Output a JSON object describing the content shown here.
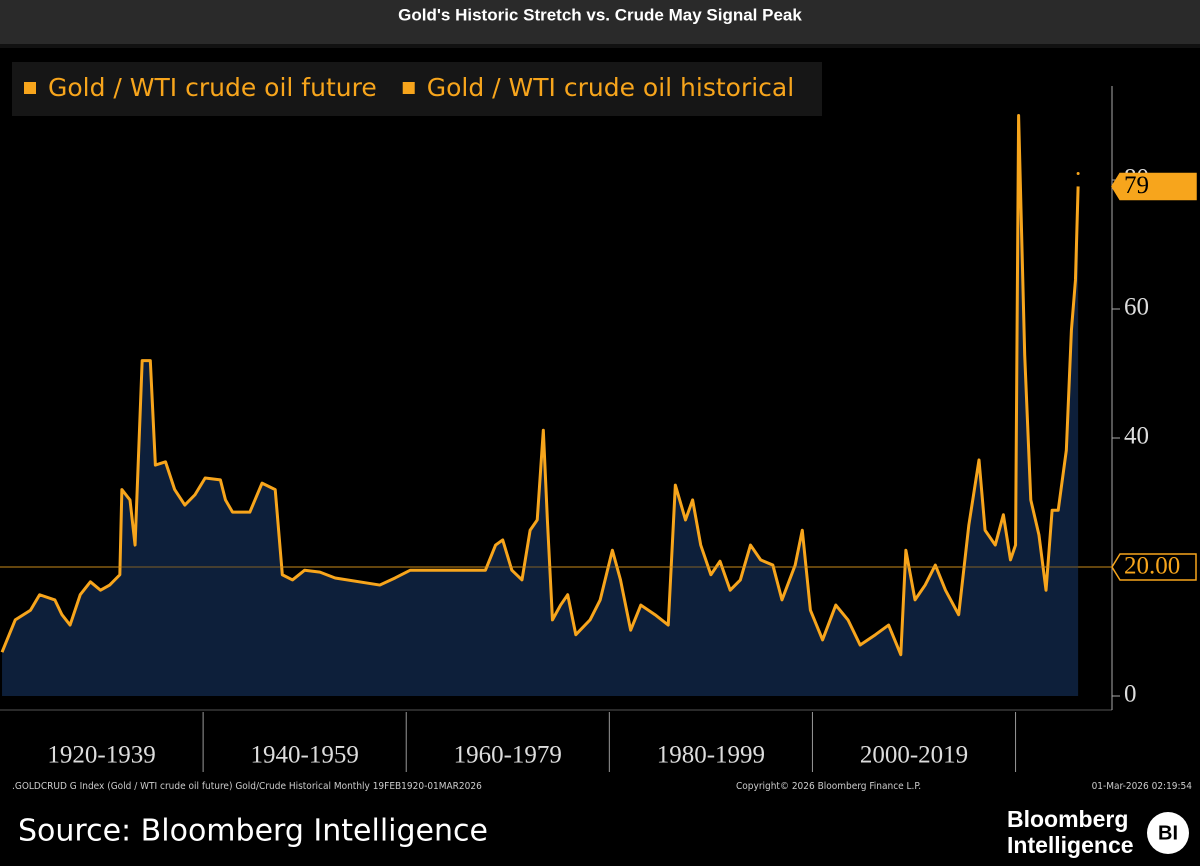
{
  "chart_data": {
    "type": "line",
    "title": "Gold's Historic Stretch vs. Crude May Signal Peak",
    "legend": "top-left",
    "series": [
      {
        "name": "Gold / WTI crude oil future",
        "color": "#f7a51c",
        "x": [
          2026.16
        ],
        "values": [
          81
        ]
      },
      {
        "name": "Gold / WTI crude oil historical",
        "color": "#f7a51c",
        "area_color": "#0d1f3a",
        "x": [
          1920.2,
          1921.5,
          1923.0,
          1923.9,
          1925.4,
          1926.1,
          1926.9,
          1927.9,
          1928.9,
          1929.9,
          1930.8,
          1931.8,
          1932.0,
          1932.8,
          1933.3,
          1934.0,
          1934.8,
          1935.3,
          1936.3,
          1937.2,
          1938.2,
          1939.2,
          1940.2,
          1941.7,
          1942.2,
          1942.9,
          1944.6,
          1945.8,
          1947.1,
          1947.8,
          1948.8,
          1950.0,
          1951.5,
          1953.0,
          1957.4,
          1958.9,
          1960.4,
          1964.3,
          1967.8,
          1968.8,
          1969.5,
          1970.4,
          1971.4,
          1972.2,
          1972.9,
          1973.5,
          1973.9,
          1974.4,
          1975.2,
          1975.9,
          1976.7,
          1978.1,
          1979.1,
          1980.3,
          1981.1,
          1982.1,
          1983.1,
          1984.5,
          1985.8,
          1986.5,
          1987.5,
          1988.2,
          1989.0,
          1990.0,
          1990.9,
          1991.9,
          1992.9,
          1993.9,
          1994.9,
          1996.1,
          1997.0,
          1998.3,
          1999.0,
          1999.8,
          2001.0,
          2002.3,
          2003.5,
          2004.7,
          2006.2,
          2007.5,
          2008.7,
          2009.2,
          2010.1,
          2011.1,
          2012.1,
          2013.1,
          2014.4,
          2015.4,
          2016.4,
          2017.0,
          2018.0,
          2018.8,
          2019.5,
          2020.0,
          2020.3,
          2020.9,
          2021.5,
          2022.3,
          2023.0,
          2023.6,
          2024.2,
          2025.0,
          2025.5,
          2025.9,
          2026.16
        ],
        "values": [
          6.8,
          11.8,
          13.3,
          15.7,
          14.9,
          12.6,
          11,
          15.7,
          17.7,
          16.4,
          17.2,
          18.8,
          32,
          30.4,
          23.4,
          52,
          52,
          35.8,
          36.3,
          32,
          29.6,
          31.2,
          33.8,
          33.5,
          30.4,
          28.5,
          28.5,
          33,
          32,
          18.8,
          18,
          19.5,
          19.2,
          18.3,
          17.2,
          18.3,
          19.5,
          19.5,
          19.5,
          23.4,
          24.2,
          19.5,
          18,
          25.7,
          27.3,
          41.2,
          27.3,
          11.8,
          14.1,
          15.7,
          9.5,
          11.8,
          14.9,
          22.6,
          18,
          10.2,
          14.1,
          12.6,
          11,
          32.7,
          27.3,
          30.4,
          23.4,
          18.8,
          20.9,
          16.4,
          18,
          23.4,
          21.1,
          20.3,
          14.9,
          20.3,
          25.7,
          13.3,
          8.7,
          14.1,
          11.8,
          7.9,
          9.5,
          11,
          6.4,
          22.6,
          14.9,
          17.2,
          20.3,
          16.4,
          12.6,
          26.5,
          36.6,
          25.7,
          23.4,
          28.1,
          21.1,
          23.4,
          90,
          52.9,
          30.4,
          25,
          16.4,
          28.8,
          28.8,
          38.1,
          56.7,
          64.5,
          79
        ]
      }
    ],
    "last_value": 79,
    "hline": {
      "value": 20,
      "label": "20.00"
    },
    "xlim": [
      1920,
      2029.3
    ],
    "xticks": [
      {
        "value": 1920,
        "label": "1920-1939"
      },
      {
        "value": 1940,
        "label": "1940-1959"
      },
      {
        "value": 1960,
        "label": "1960-1979"
      },
      {
        "value": 1980,
        "label": "1980-1999"
      },
      {
        "value": 2000,
        "label": "2000-2019"
      },
      {
        "value": 2020,
        "label": null
      }
    ],
    "ylim": [
      0,
      100
    ],
    "yticks": [
      0,
      20,
      40,
      60,
      80
    ],
    "footnote": ".GOLDCRUD G Index (Gold / WTI crude oil future) Gold/Crude Historical Monthly 19FEB1920-01MAR2026",
    "copyright": "Copyright© 2026 Bloomberg Finance L.P.",
    "timestamp": "01-Mar-2026 02:19:54",
    "source": "Source: Bloomberg Intelligence",
    "logo": [
      "Bloomberg",
      "Intelligence"
    ],
    "badge": "BI"
  }
}
